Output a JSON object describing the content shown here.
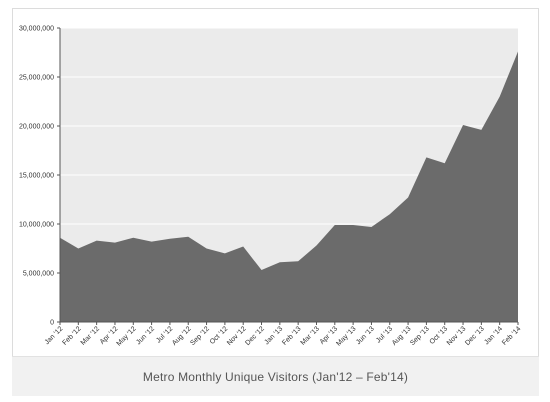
{
  "caption": "Metro Monthly Unique Visitors (Jan'12 – Feb'14)",
  "colors": {
    "plot_background": "#ebebeb",
    "area_fill": "#6b6b6b",
    "gridline": "#ffffff",
    "caption_background": "#f1f1f1"
  },
  "chart_data": {
    "type": "area",
    "title": "",
    "xlabel": "",
    "ylabel": "",
    "grid": true,
    "ylim": [
      0,
      30000000
    ],
    "y_ticks": [
      0,
      5000000,
      10000000,
      15000000,
      20000000,
      25000000,
      30000000
    ],
    "y_tick_labels": [
      "0",
      "5,000,000",
      "10,000,000",
      "15,000,000",
      "20,000,000",
      "25,000,000",
      "30,000,000"
    ],
    "categories": [
      "Jan '12",
      "Feb '12",
      "Mar '12",
      "Apr '12",
      "May '12",
      "Jun '12",
      "Jul '12",
      "Aug '12",
      "Sep '12",
      "Oct '12",
      "Nov '12",
      "Dec '12",
      "Jan '13",
      "Feb '13",
      "Mar '13",
      "Apr '13",
      "May '13",
      "Jun '13",
      "Jul '13",
      "Aug '13",
      "Sep '13",
      "Oct '13",
      "Nov '13",
      "Dec '13",
      "Jan '14",
      "Feb '14"
    ],
    "values": [
      8600000,
      7500000,
      8300000,
      8100000,
      8600000,
      8200000,
      8500000,
      8700000,
      7500000,
      7000000,
      7700000,
      5300000,
      6100000,
      6200000,
      7800000,
      9900000,
      9900000,
      9700000,
      11000000,
      12700000,
      16800000,
      16200000,
      20100000,
      19600000,
      23000000,
      27600000
    ]
  }
}
